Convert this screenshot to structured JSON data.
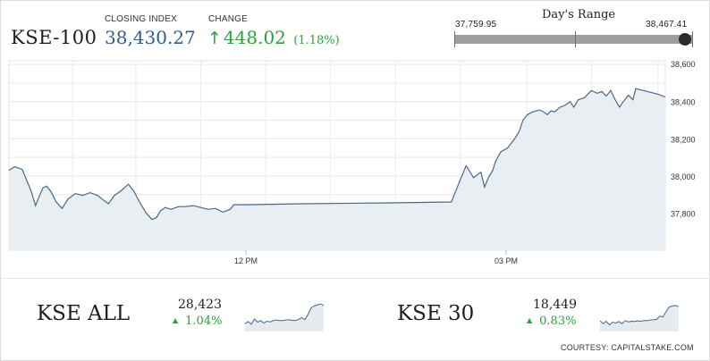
{
  "header": {
    "index_name": "KSE-100",
    "closing_label": "CLOSING INDEX",
    "closing_value": "38,430.27",
    "change_label": "CHANGE",
    "change_arrow": "↑",
    "change_value": "448.02",
    "change_pct": "(1.18%)"
  },
  "days_range": {
    "title": "Day's Range",
    "low": "37,759.95",
    "high": "38,467.41"
  },
  "chart_data": {
    "type": "area",
    "y_ticks": [
      "38,600",
      "38,400",
      "38,200",
      "38,000",
      "37,800"
    ],
    "x_ticks": [
      "12 PM",
      "03 PM"
    ],
    "ylim": [
      37600,
      38620
    ],
    "grid": true,
    "points": [
      [
        0,
        38030
      ],
      [
        0.8,
        38050
      ],
      [
        1.8,
        38035
      ],
      [
        3,
        37920
      ],
      [
        3.6,
        37840
      ],
      [
        4,
        37880
      ],
      [
        4.6,
        37935
      ],
      [
        5.1,
        37945
      ],
      [
        5.7,
        37915
      ],
      [
        6.4,
        37860
      ],
      [
        7.2,
        37825
      ],
      [
        8,
        37875
      ],
      [
        9,
        37905
      ],
      [
        10,
        37895
      ],
      [
        11,
        37910
      ],
      [
        12,
        37895
      ],
      [
        12.8,
        37870
      ],
      [
        13.5,
        37850
      ],
      [
        14.3,
        37895
      ],
      [
        15.2,
        37920
      ],
      [
        16.2,
        37955
      ],
      [
        16.9,
        37920
      ],
      [
        17.7,
        37860
      ],
      [
        18.6,
        37800
      ],
      [
        19.4,
        37765
      ],
      [
        20,
        37775
      ],
      [
        20.5,
        37810
      ],
      [
        21.2,
        37830
      ],
      [
        22,
        37820
      ],
      [
        23,
        37835
      ],
      [
        24,
        37835
      ],
      [
        25,
        37840
      ],
      [
        26,
        37830
      ],
      [
        27,
        37820
      ],
      [
        28,
        37825
      ],
      [
        29,
        37805
      ],
      [
        30,
        37820
      ],
      [
        30.5,
        37845
      ],
      [
        32,
        37845
      ],
      [
        40,
        37850
      ],
      [
        52,
        37855
      ],
      [
        60,
        37860
      ],
      [
        61,
        37960
      ],
      [
        62,
        38055
      ],
      [
        63,
        37990
      ],
      [
        64,
        38020
      ],
      [
        64.5,
        37940
      ],
      [
        65,
        37990
      ],
      [
        65.6,
        38030
      ],
      [
        66,
        38080
      ],
      [
        66.7,
        38130
      ],
      [
        67.6,
        38150
      ],
      [
        68.5,
        38195
      ],
      [
        69.2,
        38240
      ],
      [
        69.7,
        38300
      ],
      [
        70.3,
        38330
      ],
      [
        71,
        38345
      ],
      [
        72,
        38355
      ],
      [
        72.5,
        38345
      ],
      [
        73,
        38330
      ],
      [
        73.5,
        38350
      ],
      [
        74,
        38345
      ],
      [
        74.7,
        38370
      ],
      [
        75.4,
        38380
      ],
      [
        76.1,
        38400
      ],
      [
        76.6,
        38370
      ],
      [
        77.2,
        38410
      ],
      [
        78,
        38420
      ],
      [
        79,
        38460
      ],
      [
        79.8,
        38445
      ],
      [
        80.4,
        38455
      ],
      [
        81,
        38430
      ],
      [
        81.6,
        38460
      ],
      [
        82.2,
        38410
      ],
      [
        82.8,
        38370
      ],
      [
        83.2,
        38395
      ],
      [
        84,
        38435
      ],
      [
        84.6,
        38410
      ],
      [
        85,
        38470
      ],
      [
        87,
        38450
      ],
      [
        88,
        38440
      ],
      [
        89,
        38425
      ]
    ],
    "x_max": 89
  },
  "indices": [
    {
      "name": "KSE ALL",
      "value": "28,423",
      "arrow": "▲",
      "change": "1.04%",
      "spark": [
        0.2,
        0.27,
        0.18,
        0.35,
        0.25,
        0.3,
        0.22,
        0.28,
        0.26,
        0.3,
        0.32,
        0.3,
        0.3,
        0.32,
        0.33,
        0.31,
        0.3,
        0.34,
        0.4,
        0.33,
        0.5,
        0.72,
        0.78,
        0.82,
        0.85,
        0.8
      ]
    },
    {
      "name": "KSE 30",
      "value": "18,449",
      "arrow": "▲",
      "change": "0.83%",
      "spark": [
        0.3,
        0.2,
        0.28,
        0.16,
        0.25,
        0.22,
        0.27,
        0.2,
        0.3,
        0.26,
        0.28,
        0.27,
        0.29,
        0.28,
        0.3,
        0.3,
        0.32,
        0.33,
        0.34,
        0.45,
        0.42,
        0.6,
        0.75,
        0.78,
        0.8,
        0.76
      ]
    }
  ],
  "footer": {
    "courtesy": "COURTESY: CAPITALSTAKE.COM"
  },
  "colors": {
    "price_up": "#2ba23c",
    "closing": "#2f5e8e",
    "chart_line": "#45698c",
    "chart_fill": "#e9eef3"
  }
}
